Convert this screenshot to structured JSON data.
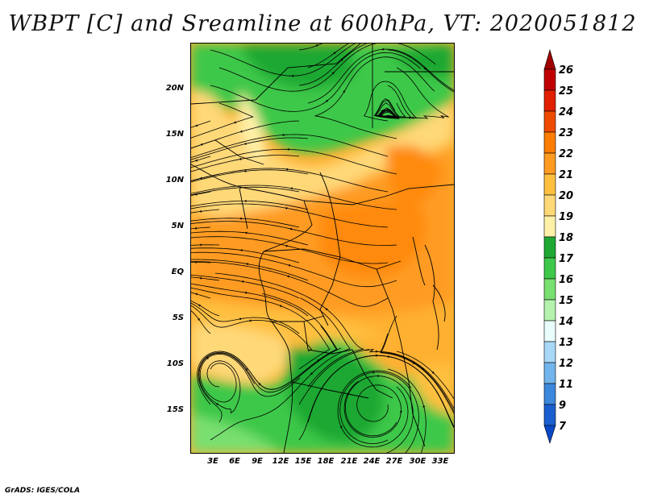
{
  "title": "WBPT [C] and Sreamline at 600hPa, VT: 2020051812",
  "credit": "GrADS: IGES/COLA",
  "map": {
    "variable": "wet-bulb potential temperature",
    "level": "600hPa",
    "valid_time": "2020051812",
    "lat_ticks": [
      "20N",
      "15N",
      "10N",
      "5N",
      "EQ",
      "5S",
      "10S",
      "15S"
    ],
    "lon_ticks": [
      "3E",
      "6E",
      "9E",
      "12E",
      "15E",
      "18E",
      "21E",
      "24E",
      "27E",
      "30E",
      "33E"
    ]
  },
  "colorbar": {
    "labels": [
      "26",
      "25",
      "24",
      "23",
      "22",
      "21",
      "20",
      "19",
      "18",
      "17",
      "16",
      "15",
      "14",
      "13",
      "12",
      "11",
      "9",
      "7"
    ],
    "colors": [
      "#a00000",
      "#c00000",
      "#e02000",
      "#ee4a00",
      "#ff7d00",
      "#ff9b20",
      "#ffc040",
      "#ffd878",
      "#fff0a8",
      "#1fa832",
      "#3ec84a",
      "#78df70",
      "#b4f2ae",
      "#e8fdfc",
      "#a8d8f8",
      "#72b4ec",
      "#3c88dc",
      "#1a5fd0",
      "#0a48c8"
    ]
  }
}
